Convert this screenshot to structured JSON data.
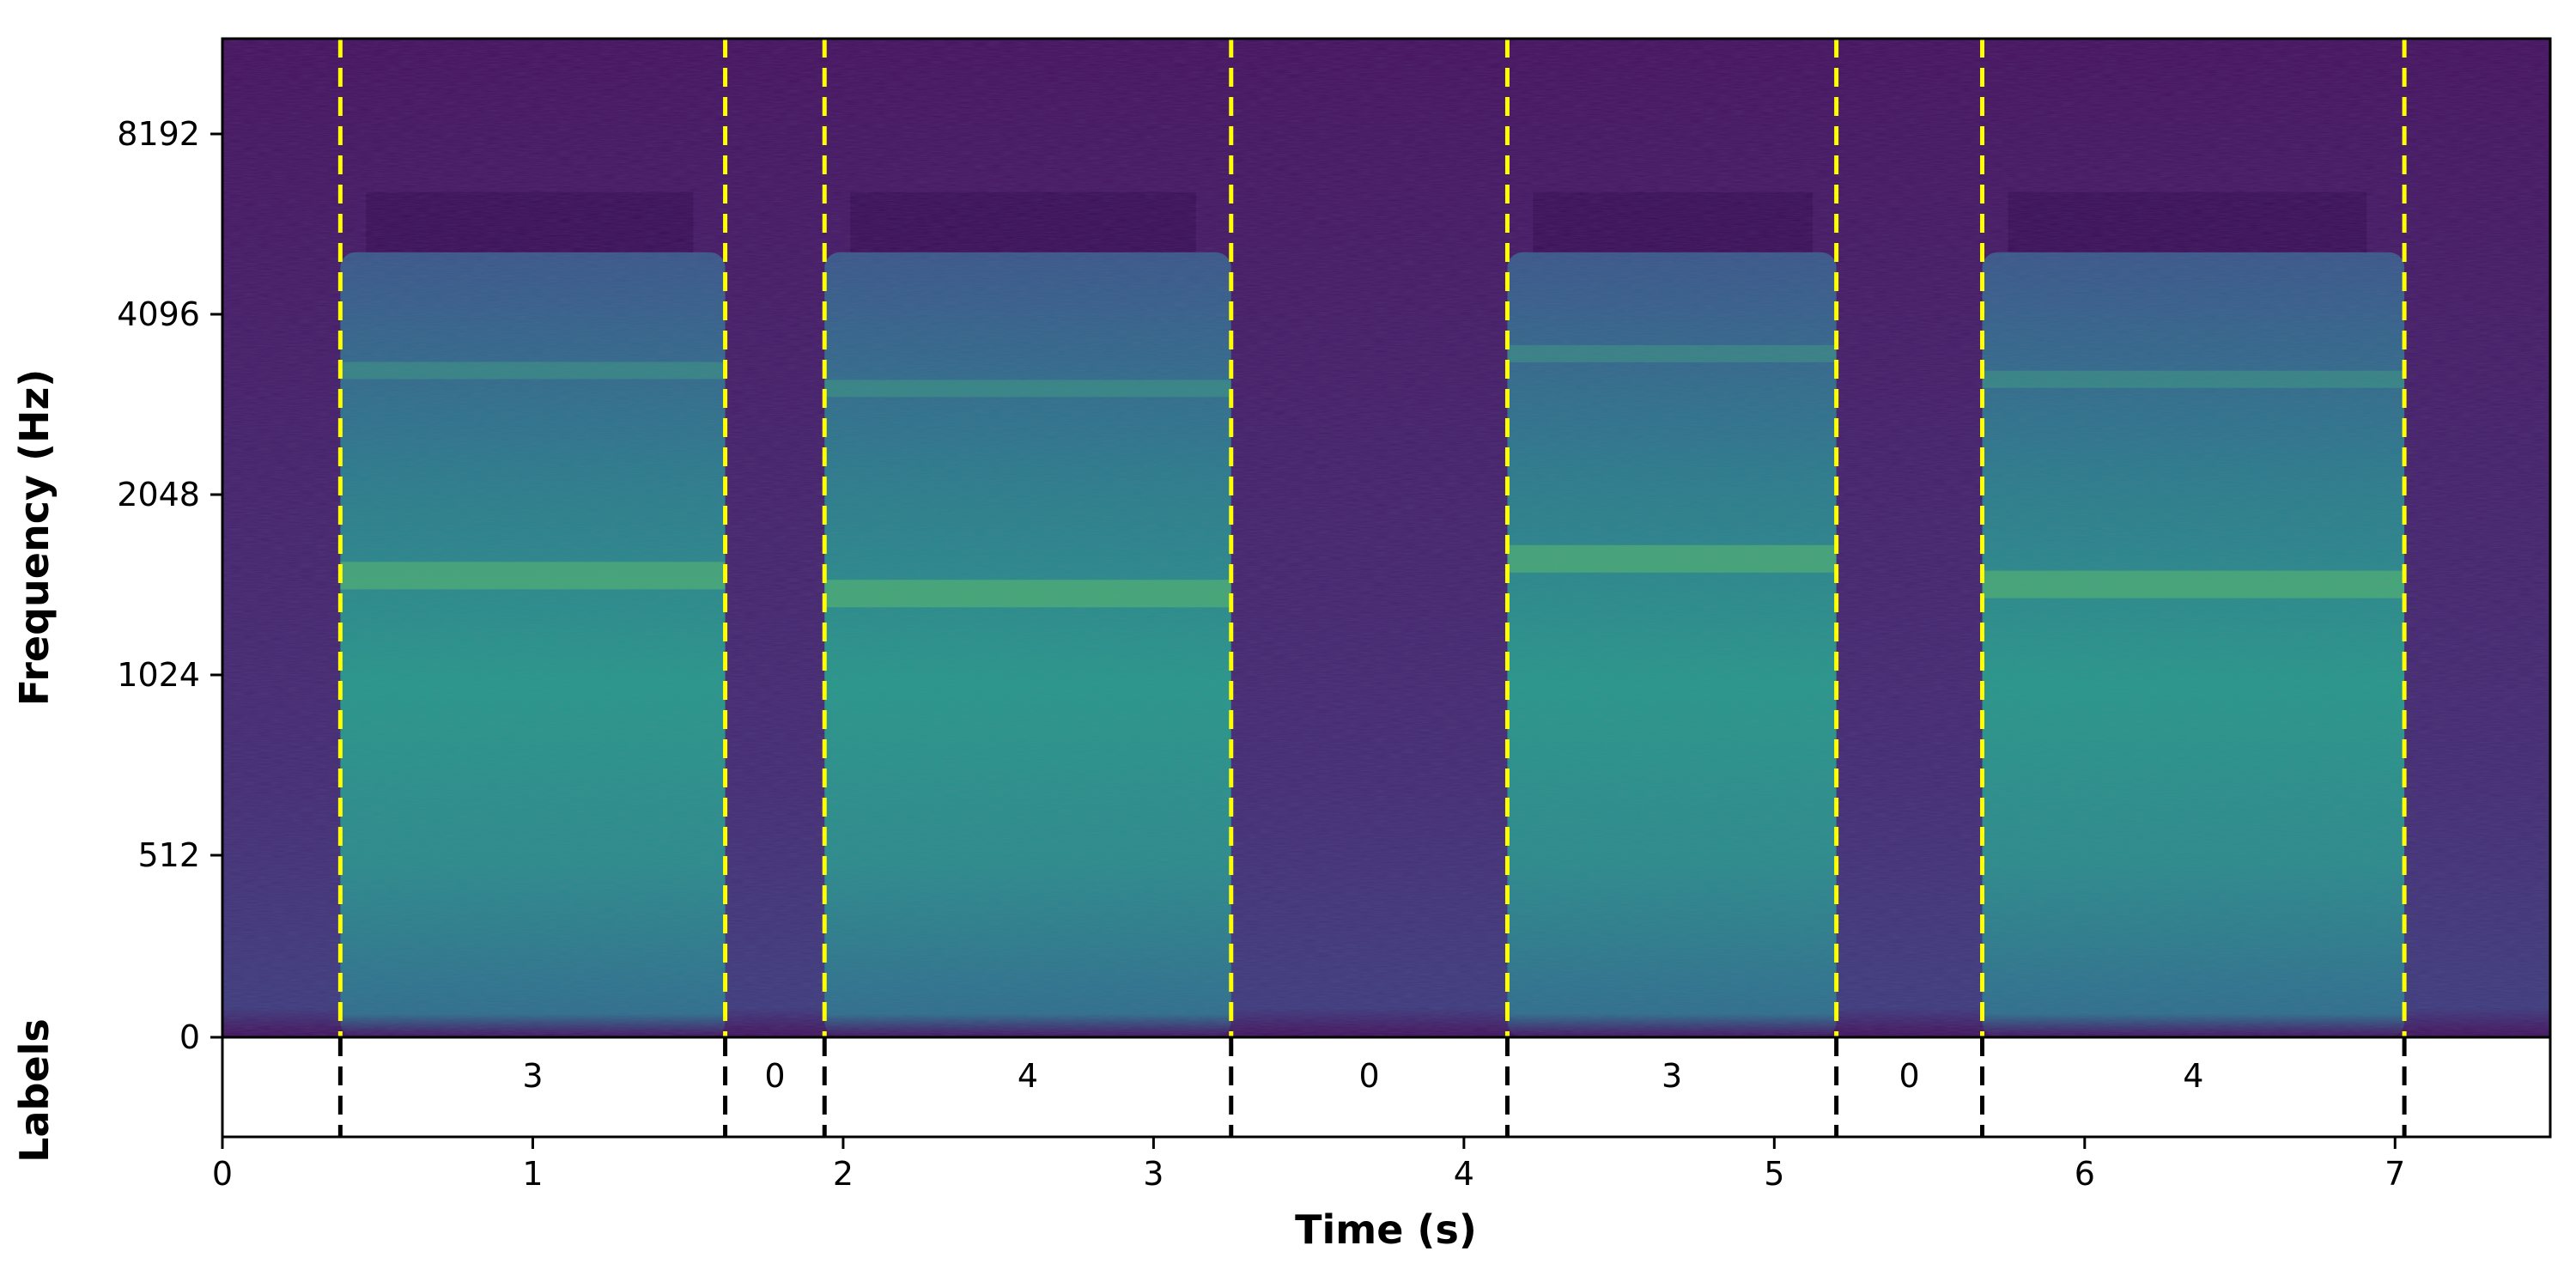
{
  "chart_data": {
    "type": "heatmap",
    "description_type": "spectrogram",
    "colormap": "viridis",
    "xlabel": "Time (s)",
    "ylabel": "Frequency (Hz)",
    "labels_axis_title": "Labels",
    "xlim": [
      0,
      7.5
    ],
    "x_ticks": [
      0,
      1,
      2,
      3,
      4,
      5,
      6,
      7
    ],
    "y_ticks": [
      0,
      512,
      1024,
      2048,
      4096,
      8192
    ],
    "y_scale": "log2",
    "boundary_times": [
      0.38,
      1.62,
      1.94,
      3.25,
      4.14,
      5.2,
      5.67,
      7.03
    ],
    "boundary_color_spectrogram": "#ffff00",
    "boundary_color_labels": "#000000",
    "segments": [
      {
        "start": 0.38,
        "end": 1.62,
        "label": "3"
      },
      {
        "start": 1.62,
        "end": 1.94,
        "label": "0"
      },
      {
        "start": 1.94,
        "end": 3.25,
        "label": "4"
      },
      {
        "start": 3.25,
        "end": 4.14,
        "label": "0"
      },
      {
        "start": 4.14,
        "end": 5.2,
        "label": "3"
      },
      {
        "start": 5.2,
        "end": 5.67,
        "label": "0"
      },
      {
        "start": 5.67,
        "end": 7.03,
        "label": "4"
      }
    ],
    "energy_regions": [
      {
        "start": 0.38,
        "end": 1.62,
        "peak_hz": 1500
      },
      {
        "start": 1.94,
        "end": 3.25,
        "peak_hz": 1400
      },
      {
        "start": 4.14,
        "end": 5.2,
        "peak_hz": 1600
      },
      {
        "start": 5.67,
        "end": 7.03,
        "peak_hz": 1450
      }
    ],
    "grid": false,
    "legend": "none"
  }
}
